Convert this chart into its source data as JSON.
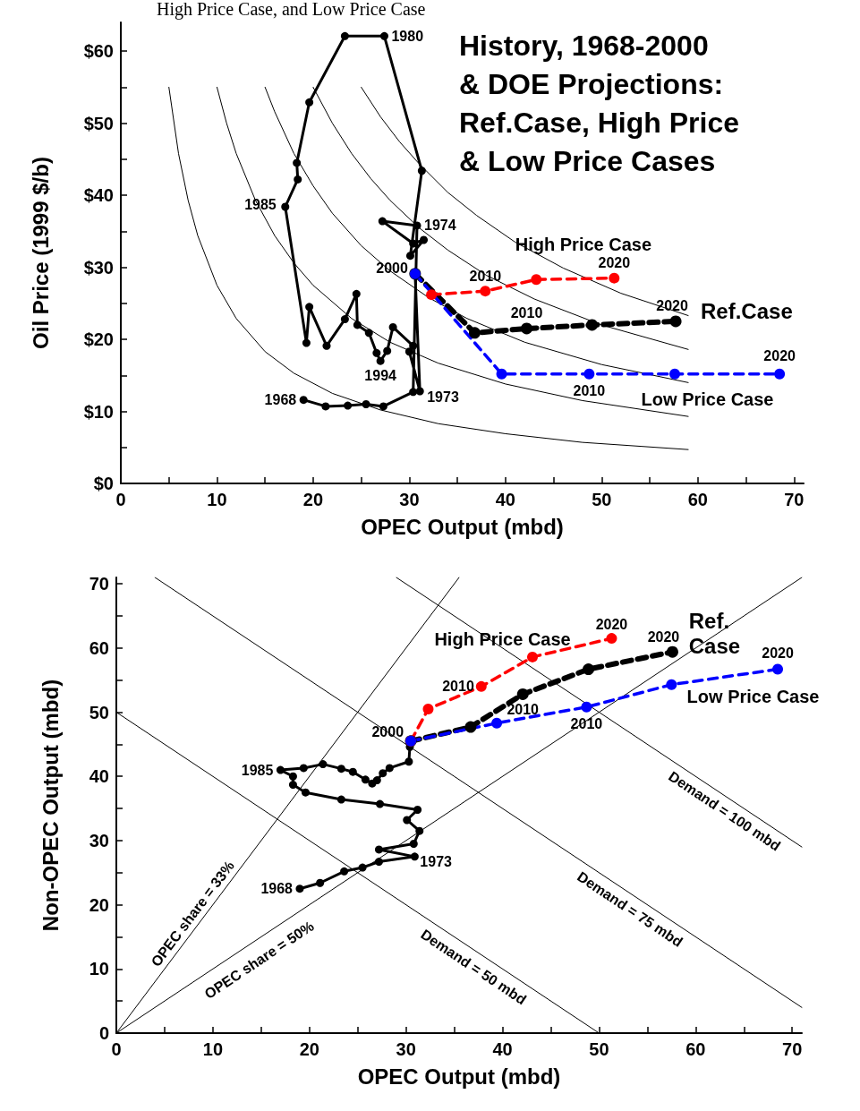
{
  "chart_data": [
    {
      "type": "line",
      "title": "History, 1968-2000\n& DOE Projections:\nRef.Case, High Price\n& Low Price Cases",
      "xlabel": "OPEC Output (mbd)",
      "ylabel": "Oil Price (1999 $/b)",
      "xlim": [
        0,
        71
      ],
      "ylim": [
        0,
        64
      ],
      "xticks": [
        0,
        {
          "value": 5,
          "label": null
        },
        10,
        {
          "value": 15,
          "label": null
        },
        20,
        {
          "value": 25,
          "label": null
        },
        30,
        {
          "value": 35,
          "label": null
        },
        40,
        {
          "value": 45,
          "label": null
        },
        50,
        {
          "value": 55,
          "label": null
        },
        60,
        {
          "value": 65,
          "label": null
        },
        70
      ],
      "yticks": [
        {
          "value": 0,
          "label": "$0"
        },
        {
          "value": 5,
          "label": null
        },
        {
          "value": 10,
          "label": "$10"
        },
        {
          "value": 15,
          "label": null
        },
        {
          "value": 20,
          "label": "$20"
        },
        {
          "value": 25,
          "label": null
        },
        {
          "value": 30,
          "label": "$30"
        },
        {
          "value": 35,
          "label": null
        },
        {
          "value": 40,
          "label": "$40"
        },
        {
          "value": 45,
          "label": null
        },
        {
          "value": 50,
          "label": "$50"
        },
        {
          "value": 55,
          "label": null
        },
        {
          "value": 60,
          "label": "$60"
        }
      ],
      "grid": false,
      "legend": false,
      "marker": "circle",
      "series": [
        {
          "color": "#000000",
          "marker": "none",
          "line_style": "solid",
          "x": [
            5,
            6,
            7,
            8,
            10,
            12,
            15,
            18,
            22,
            27,
            33,
            40,
            48,
            59
          ],
          "values": [
            55,
            45.8,
            39.3,
            34.4,
            27.5,
            22.9,
            18.3,
            15.3,
            12.5,
            10.2,
            8.3,
            6.9,
            5.7,
            4.7
          ]
        },
        {
          "color": "#000000",
          "marker": "none",
          "line_style": "solid",
          "x": [
            10,
            11,
            12,
            14,
            16,
            18,
            20,
            24,
            28,
            33,
            40,
            48,
            59
          ],
          "values": [
            55,
            50,
            45.8,
            39.3,
            34.4,
            30.6,
            27.5,
            22.9,
            19.6,
            16.7,
            13.8,
            11.5,
            9.3
          ]
        },
        {
          "color": "#000000",
          "marker": "none",
          "line_style": "solid",
          "x": [
            15,
            16,
            18,
            20,
            22,
            25,
            28,
            32,
            36,
            42,
            50,
            59
          ],
          "values": [
            55,
            51.6,
            45.8,
            41.3,
            37.5,
            33,
            29.5,
            25.8,
            22.9,
            19.6,
            16.5,
            14
          ]
        },
        {
          "color": "#000000",
          "marker": "none",
          "line_style": "solid",
          "x": [
            20,
            22,
            24,
            26,
            28,
            31,
            34,
            38,
            43,
            50,
            59
          ],
          "values": [
            55,
            50,
            45.8,
            42.3,
            39.3,
            35.5,
            32.4,
            28.9,
            25.6,
            22,
            18.6
          ]
        },
        {
          "color": "#000000",
          "marker": "none",
          "line_style": "solid",
          "x": [
            25,
            27,
            29,
            31,
            34,
            37,
            41,
            46,
            52,
            59
          ],
          "values": [
            55,
            50.9,
            47.4,
            44.4,
            40.4,
            37.2,
            33.5,
            29.9,
            26.4,
            23.3
          ]
        },
        {
          "color": "#000000",
          "line_style": "solid",
          "x": [
            19.0,
            21.3,
            23.6,
            25.5,
            27.3,
            30.4,
            30.8,
            27.2,
            30.4,
            31.5,
            30.1,
            31.3,
            27.4,
            23.3,
            19.6,
            18.3,
            18.4,
            17.1,
            19.3,
            19.6,
            21.4,
            23.3,
            24.5,
            24.6,
            25.8,
            26.6,
            27.0,
            27.7,
            28.3,
            30.4,
            30.0,
            31.1,
            30.6
          ],
          "values": [
            11.6,
            10.7,
            10.8,
            11.0,
            10.7,
            12.7,
            35.8,
            36.4,
            33.3,
            33.8,
            31.6,
            43.4,
            62.1,
            62.1,
            52.9,
            44.5,
            42.2,
            38.4,
            19.5,
            24.5,
            19.1,
            22.8,
            26.3,
            22.0,
            20.9,
            18.1,
            17.0,
            18.4,
            21.7,
            19.1,
            18.3,
            12.8,
            29.1
          ]
        },
        {
          "name": "Ref.Case",
          "color": "#000000",
          "line_style": "dashed",
          "x": [
            30.6,
            36.8,
            42.2,
            49.0,
            57.7
          ],
          "values": [
            29.1,
            20.9,
            21.5,
            22.0,
            22.5
          ]
        },
        {
          "name": "High Price Case",
          "color": "#ff0000",
          "line_style": "dashed",
          "x": [
            32.3,
            37.9,
            43.2,
            51.3
          ],
          "values": [
            26.2,
            26.7,
            28.3,
            28.5
          ]
        },
        {
          "name": "Low Price Case",
          "color": "#0000ff",
          "line_style": "dashed",
          "x": [
            30.6,
            39.6,
            48.7,
            57.6,
            68.5
          ],
          "values": [
            29.1,
            15.2,
            15.2,
            15.2,
            15.2
          ]
        }
      ],
      "annotations": [
        {
          "text": "1980",
          "x": 27.4,
          "y": 62.1
        },
        {
          "text": "1974",
          "x": 30.8,
          "y": 35.8
        },
        {
          "text": "1985",
          "x": 17.1,
          "y": 38.4
        },
        {
          "text": "2000",
          "x": 30.6,
          "y": 29.1
        },
        {
          "text": "1994",
          "x": 27.0,
          "y": 17.0
        },
        {
          "text": "1968",
          "x": 19.0,
          "y": 11.6
        },
        {
          "text": "1973",
          "x": 31.1,
          "y": 12.8
        },
        {
          "text": "2010",
          "x": 37.9,
          "y": 26.7
        },
        {
          "text": "2020",
          "x": 51.3,
          "y": 28.5
        },
        {
          "text": "2010",
          "x": 42.2,
          "y": 21.5
        },
        {
          "text": "2020",
          "x": 57.7,
          "y": 22.5
        },
        {
          "text": "2010",
          "x": 48.7,
          "y": 15.2
        },
        {
          "text": "2020",
          "x": 68.5,
          "y": 15.2
        },
        "High Price Case, and Low Price Case"
      ]
    },
    {
      "type": "line",
      "xlabel": "OPEC Output (mbd)",
      "ylabel": "Non-OPEC Output (mbd)",
      "xlim": [
        0,
        71
      ],
      "ylim": [
        0,
        71
      ],
      "xticks": [
        0,
        {
          "value": 5,
          "label": null
        },
        10,
        {
          "value": 15,
          "label": null
        },
        20,
        {
          "value": 25,
          "label": null
        },
        30,
        {
          "value": 35,
          "label": null
        },
        40,
        {
          "value": 45,
          "label": null
        },
        50,
        {
          "value": 55,
          "label": null
        },
        60,
        {
          "value": 65,
          "label": null
        },
        70
      ],
      "yticks": [
        0,
        {
          "value": 5,
          "label": null
        },
        10,
        {
          "value": 15,
          "label": null
        },
        20,
        {
          "value": 25,
          "label": null
        },
        30,
        {
          "value": 35,
          "label": null
        },
        40,
        {
          "value": 45,
          "label": null
        },
        50,
        {
          "value": 55,
          "label": null
        },
        60,
        {
          "value": 65,
          "label": null
        },
        70
      ],
      "grid": false,
      "legend": false,
      "marker": "circle",
      "series": [
        {
          "color": "#000000",
          "marker": "none",
          "line_style": "solid",
          "x": [
            0,
            35.5
          ],
          "values": [
            0,
            71
          ]
        },
        {
          "color": "#000000",
          "marker": "none",
          "line_style": "solid",
          "x": [
            0,
            71
          ],
          "values": [
            0,
            71
          ]
        },
        {
          "color": "#000000",
          "marker": "none",
          "line_style": "solid",
          "x": [
            0,
            50
          ],
          "values": [
            50,
            0
          ]
        },
        {
          "color": "#000000",
          "marker": "none",
          "line_style": "solid",
          "x": [
            4,
            71
          ],
          "values": [
            71,
            4
          ]
        },
        {
          "color": "#000000",
          "marker": "none",
          "line_style": "solid",
          "x": [
            29,
            71
          ],
          "values": [
            71,
            29
          ]
        },
        {
          "color": "#000000",
          "line_style": "solid",
          "x": [
            19.0,
            21.1,
            23.6,
            25.5,
            27.2,
            30.9,
            27.2,
            30.8,
            31.4,
            30.1,
            31.2,
            27.3,
            23.3,
            19.6,
            18.3,
            18.3,
            17.0,
            19.4,
            21.4,
            23.3,
            24.5,
            25.8,
            26.5,
            27.0,
            27.6,
            28.3,
            30.3,
            30.4,
            30.5
          ],
          "values": [
            22.5,
            23.4,
            25.2,
            25.8,
            26.7,
            27.5,
            28.6,
            29.5,
            31.5,
            33.2,
            34.8,
            35.7,
            36.4,
            37.5,
            38.7,
            40.0,
            41.0,
            41.3,
            41.9,
            41.2,
            40.7,
            39.5,
            38.9,
            39.4,
            40.5,
            41.3,
            42.3,
            44.6,
            45.5
          ]
        },
        {
          "name": "Ref. Case",
          "color": "#000000",
          "line_style": "dashed",
          "x": [
            30.5,
            36.7,
            42.1,
            48.9,
            57.6
          ],
          "values": [
            45.5,
            47.7,
            52.8,
            56.7,
            59.4
          ]
        },
        {
          "name": "High Price Case",
          "color": "#ff0000",
          "line_style": "dashed",
          "x": [
            30.5,
            32.3,
            37.8,
            43.1,
            51.3
          ],
          "values": [
            45.5,
            50.5,
            54.0,
            58.6,
            61.5
          ]
        },
        {
          "name": "Low Price Case",
          "color": "#0000ff",
          "line_style": "dashed",
          "x": [
            30.5,
            39.4,
            48.7,
            57.5,
            68.5
          ],
          "values": [
            45.5,
            48.3,
            50.8,
            54.3,
            56.7
          ]
        }
      ],
      "annotations": [
        "OPEC share = 33%",
        "OPEC share = 50%",
        "Demand = 50 mbd",
        "Demand = 75 mbd",
        "Demand = 100 mbd",
        {
          "text": "1985",
          "x": 17.0,
          "y": 41.0
        },
        {
          "text": "1968",
          "x": 19.0,
          "y": 22.5
        },
        {
          "text": "1973",
          "x": 30.9,
          "y": 27.5
        },
        {
          "text": "2000",
          "x": 30.5,
          "y": 45.5
        },
        {
          "text": "2010",
          "x": 37.8,
          "y": 54.0
        },
        {
          "text": "2020",
          "x": 51.3,
          "y": 61.5
        },
        {
          "text": "2010",
          "x": 42.1,
          "y": 52.8
        },
        {
          "text": "2020",
          "x": 57.6,
          "y": 59.4
        },
        {
          "text": "2010",
          "x": 48.7,
          "y": 50.8
        },
        {
          "text": "2020",
          "x": 68.5,
          "y": 56.7
        }
      ]
    }
  ]
}
